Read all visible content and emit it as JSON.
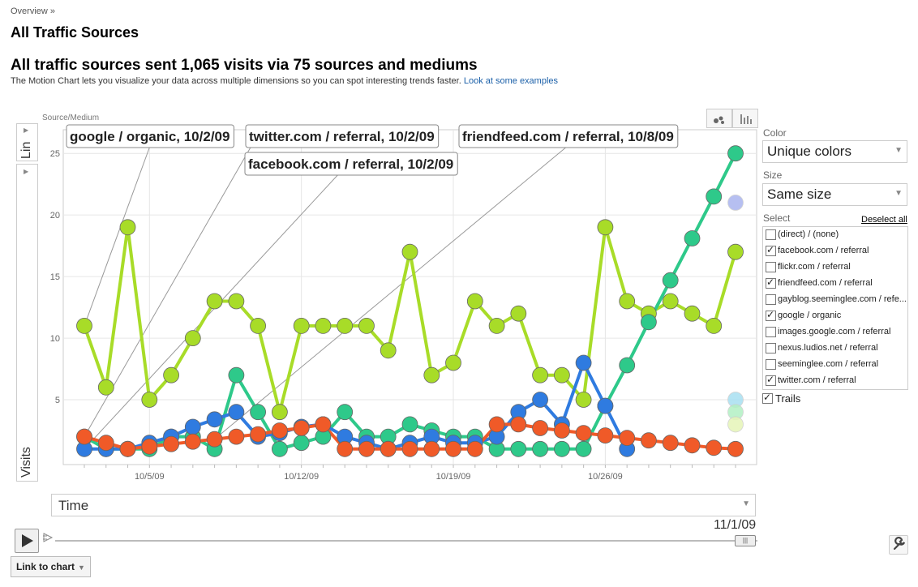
{
  "breadcrumb": "Overview »",
  "page_title": "All Traffic Sources",
  "summary": "All traffic sources sent 1,065 visits via 75 sources and mediums",
  "description": "The Motion Chart lets you visualize your data across multiple dimensions so you can spot interesting trends faster.",
  "examples_link": "Look at some examples",
  "chart_label": "Source/Medium",
  "y_scale": "Lin",
  "y_axis_label": "Visits",
  "x_axis_select": "Time",
  "current_date": "11/1/09",
  "link_to_chart": "Link to chart",
  "color_label": "Color",
  "color_value": "Unique colors",
  "size_label": "Size",
  "size_value": "Same size",
  "select_label": "Select",
  "deselect_all": "Deselect all",
  "trails_label": "Trails",
  "trails_checked": true,
  "select_items": [
    {
      "label": "(direct) / (none)",
      "checked": false
    },
    {
      "label": "facebook.com / referral",
      "checked": true
    },
    {
      "label": "flickr.com / referral",
      "checked": false
    },
    {
      "label": "friendfeed.com / referral",
      "checked": true
    },
    {
      "label": "gayblog.seeminglee.com / refe...",
      "checked": false
    },
    {
      "label": "google / organic",
      "checked": true
    },
    {
      "label": "images.google.com / referral",
      "checked": false
    },
    {
      "label": "nexus.ludios.net / referral",
      "checked": false
    },
    {
      "label": "seeminglee.com / referral",
      "checked": false
    },
    {
      "label": "twitter.com / referral",
      "checked": true
    }
  ],
  "tooltips": [
    "google / organic, 10/2/09",
    "twitter.com / referral, 10/2/09",
    "friendfeed.com / referral, 10/8/09",
    "facebook.com / referral, 10/2/09"
  ],
  "chart_data": {
    "type": "scatter",
    "x": [
      "10/2/09",
      "10/3/09",
      "10/4/09",
      "10/5/09",
      "10/6/09",
      "10/7/09",
      "10/8/09",
      "10/9/09",
      "10/10/09",
      "10/11/09",
      "10/12/09",
      "10/13/09",
      "10/14/09",
      "10/15/09",
      "10/16/09",
      "10/17/09",
      "10/18/09",
      "10/19/09",
      "10/20/09",
      "10/21/09",
      "10/22/09",
      "10/23/09",
      "10/24/09",
      "10/25/09",
      "10/26/09",
      "10/27/09",
      "10/28/09",
      "10/29/09",
      "10/30/09",
      "10/31/09",
      "11/1/09"
    ],
    "x_ticks": [
      "10/5/09",
      "10/12/09",
      "10/19/09",
      "10/26/09"
    ],
    "y_ticks": [
      5,
      10,
      15,
      20,
      25
    ],
    "ylim": [
      0,
      26
    ],
    "grid": true,
    "series": [
      {
        "name": "google / organic",
        "color": "#a8dc28",
        "values": [
          11,
          6,
          19,
          5,
          7,
          10,
          13,
          13,
          11,
          4,
          11,
          11,
          11,
          11,
          9,
          17,
          7,
          8,
          13,
          11,
          12,
          7,
          7,
          5,
          19,
          13,
          12,
          13,
          12,
          11,
          17
        ]
      },
      {
        "name": "twitter.com / referral",
        "color": "#2ec98a",
        "values": [
          2,
          1,
          1,
          1,
          2,
          2,
          1,
          7,
          4,
          1,
          1.5,
          2,
          4,
          2,
          2,
          3,
          2.5,
          2,
          2,
          1,
          1,
          1,
          1,
          1,
          4.5,
          7.8,
          11.3,
          14.7,
          18.1,
          21.5,
          25
        ]
      },
      {
        "name": "facebook.com / referral",
        "color": "#2f7be0",
        "values": [
          1,
          1,
          1,
          1.5,
          2,
          2.8,
          3.4,
          4,
          2,
          2.3,
          2.8,
          3,
          2,
          1.5,
          1,
          1.5,
          2,
          1.5,
          1.5,
          2,
          4,
          5,
          3,
          8,
          4.5,
          1,
          null,
          null,
          null,
          null,
          null
        ]
      },
      {
        "name": "friendfeed.com / referral",
        "color": "#f05a28",
        "values": [
          2,
          1.5,
          1,
          1.2,
          1.4,
          1.6,
          1.8,
          2,
          2.2,
          2.5,
          2.7,
          3,
          1,
          1,
          1,
          1,
          1,
          1,
          1,
          3,
          3,
          2.7,
          2.5,
          2.3,
          2.1,
          1.9,
          1.7,
          1.5,
          1.3,
          1.1,
          1
        ]
      }
    ],
    "faded_points": [
      {
        "color": "#aab4ef",
        "value": 21
      },
      {
        "color": "#a8e0f2",
        "value": 5
      },
      {
        "color": "#b2f0c4",
        "value": 4
      },
      {
        "color": "#e6f5b8",
        "value": 3
      }
    ]
  }
}
